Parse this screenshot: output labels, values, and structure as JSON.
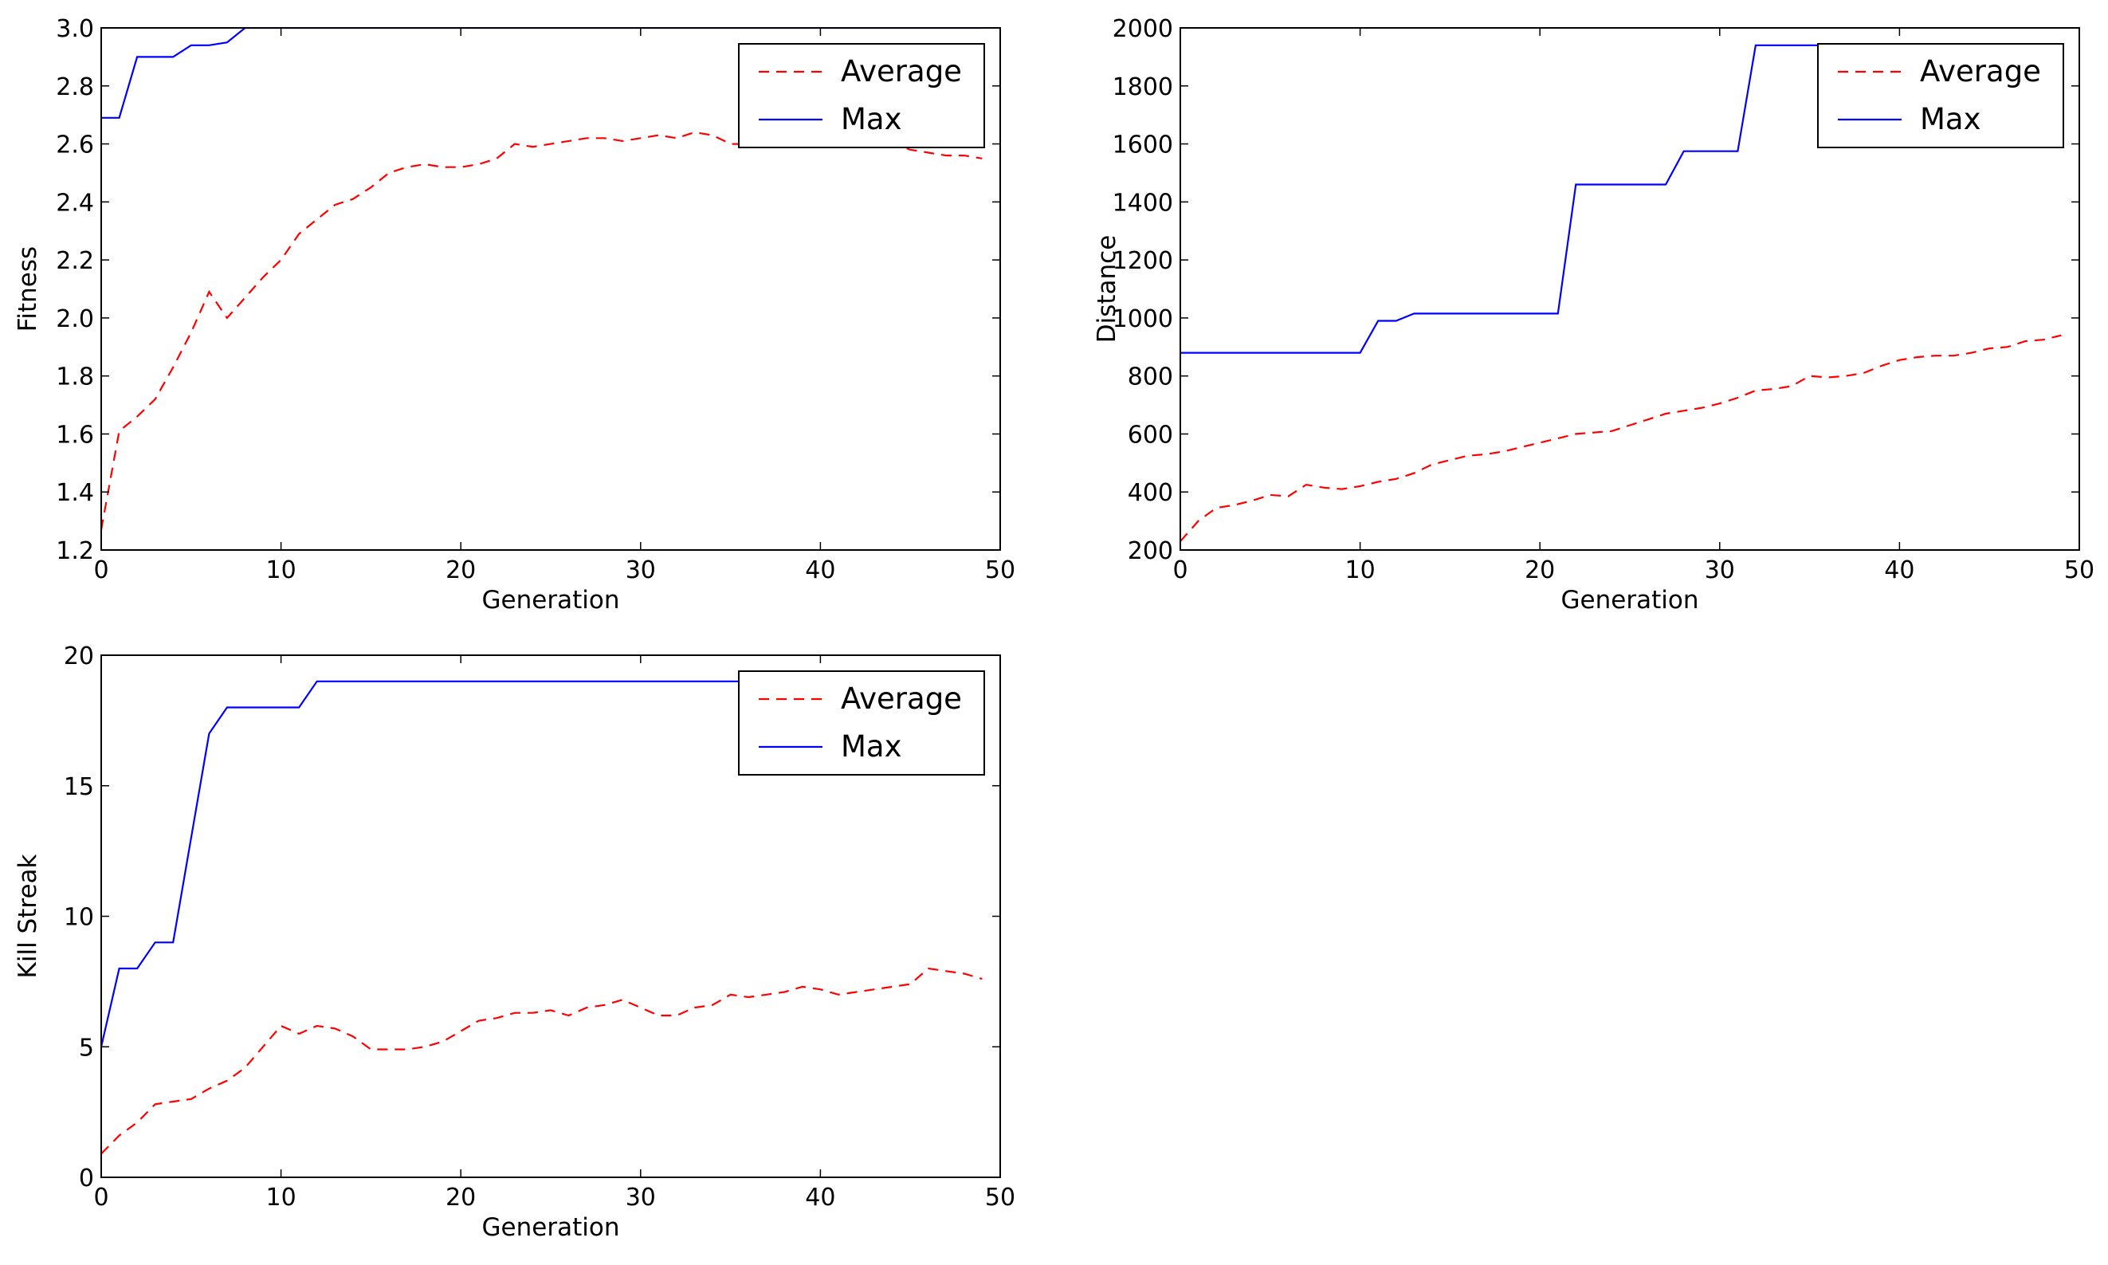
{
  "chart_data": [
    {
      "type": "line",
      "xlabel": "Generation",
      "ylabel": "Fitness",
      "xlim": [
        0,
        50
      ],
      "ylim": [
        1.2,
        3.0
      ],
      "xticks": [
        0,
        10,
        20,
        30,
        40,
        50
      ],
      "yticks": [
        1.2,
        1.4,
        1.6,
        1.8,
        2.0,
        2.2,
        2.4,
        2.6,
        2.8,
        3.0
      ],
      "ytick_decimals": 1,
      "legend_position": "upper-right",
      "x": [
        0,
        1,
        2,
        3,
        4,
        5,
        6,
        7,
        8,
        9,
        10,
        11,
        12,
        13,
        14,
        15,
        16,
        17,
        18,
        19,
        20,
        21,
        22,
        23,
        24,
        25,
        26,
        27,
        28,
        29,
        30,
        31,
        32,
        33,
        34,
        35,
        36,
        37,
        38,
        39,
        40,
        41,
        42,
        43,
        44,
        45,
        46,
        47,
        48,
        49
      ],
      "series": [
        {
          "name": "Average",
          "color": "#ff0000",
          "style": "dashed",
          "values": [
            1.27,
            1.61,
            1.66,
            1.72,
            1.83,
            1.95,
            2.09,
            2.0,
            2.07,
            2.14,
            2.2,
            2.29,
            2.34,
            2.39,
            2.41,
            2.45,
            2.5,
            2.52,
            2.53,
            2.52,
            2.52,
            2.53,
            2.55,
            2.6,
            2.59,
            2.6,
            2.61,
            2.62,
            2.62,
            2.61,
            2.62,
            2.63,
            2.62,
            2.64,
            2.63,
            2.6,
            2.6,
            2.6,
            2.6,
            2.6,
            2.6,
            2.6,
            2.6,
            2.6,
            2.6,
            2.58,
            2.57,
            2.56,
            2.56,
            2.55
          ]
        },
        {
          "name": "Max",
          "color": "#0000ff",
          "style": "solid",
          "values": [
            2.69,
            2.69,
            2.9,
            2.9,
            2.9,
            2.94,
            2.94,
            2.95,
            3.0,
            3.0,
            3.0,
            3.0,
            3.0,
            3.0,
            3.0,
            3.0,
            3.0,
            3.0,
            3.0,
            3.0,
            3.0,
            3.0,
            3.0,
            3.0,
            3.0,
            3.0,
            3.0,
            3.0,
            3.0,
            3.0,
            3.0,
            3.0,
            3.0,
            3.0,
            3.0,
            3.0,
            3.0,
            3.0,
            3.0,
            3.0,
            3.0,
            3.0,
            3.0,
            3.0,
            3.0,
            3.0,
            3.0,
            3.0,
            3.0,
            3.0
          ]
        }
      ]
    },
    {
      "type": "line",
      "xlabel": "Generation",
      "ylabel": "Distance",
      "xlim": [
        0,
        50
      ],
      "ylim": [
        200,
        2000
      ],
      "xticks": [
        0,
        10,
        20,
        30,
        40,
        50
      ],
      "yticks": [
        200,
        400,
        600,
        800,
        1000,
        1200,
        1400,
        1600,
        1800,
        2000
      ],
      "ytick_decimals": 0,
      "legend_position": "upper-right",
      "x": [
        0,
        1,
        2,
        3,
        4,
        5,
        6,
        7,
        8,
        9,
        10,
        11,
        12,
        13,
        14,
        15,
        16,
        17,
        18,
        19,
        20,
        21,
        22,
        23,
        24,
        25,
        26,
        27,
        28,
        29,
        30,
        31,
        32,
        33,
        34,
        35,
        36,
        37,
        38,
        39,
        40,
        41,
        42,
        43,
        44,
        45,
        46,
        47,
        48,
        49
      ],
      "series": [
        {
          "name": "Average",
          "color": "#ff0000",
          "style": "dashed",
          "values": [
            230,
            300,
            345,
            355,
            370,
            390,
            385,
            425,
            415,
            410,
            420,
            435,
            445,
            465,
            495,
            510,
            525,
            530,
            540,
            555,
            570,
            585,
            600,
            605,
            610,
            630,
            650,
            670,
            680,
            690,
            705,
            725,
            750,
            755,
            765,
            800,
            795,
            800,
            810,
            835,
            855,
            865,
            870,
            870,
            880,
            895,
            900,
            920,
            925,
            940
          ]
        },
        {
          "name": "Max",
          "color": "#0000ff",
          "style": "solid",
          "values": [
            880,
            880,
            880,
            880,
            880,
            880,
            880,
            880,
            880,
            880,
            880,
            990,
            990,
            1015,
            1015,
            1015,
            1015,
            1015,
            1015,
            1015,
            1015,
            1015,
            1460,
            1460,
            1460,
            1460,
            1460,
            1460,
            1575,
            1575,
            1575,
            1575,
            1940,
            1940,
            1940,
            1940,
            1940,
            1940,
            1940,
            1940,
            1940,
            1940,
            1940,
            1940,
            1940,
            1940,
            1940,
            1940,
            1940,
            1940
          ]
        }
      ]
    },
    {
      "type": "line",
      "xlabel": "Generation",
      "ylabel": "Kill Streak",
      "xlim": [
        0,
        50
      ],
      "ylim": [
        0,
        20
      ],
      "xticks": [
        0,
        10,
        20,
        30,
        40,
        50
      ],
      "yticks": [
        0,
        5,
        10,
        15,
        20
      ],
      "ytick_decimals": 0,
      "legend_position": "upper-right",
      "x": [
        0,
        1,
        2,
        3,
        4,
        5,
        6,
        7,
        8,
        9,
        10,
        11,
        12,
        13,
        14,
        15,
        16,
        17,
        18,
        19,
        20,
        21,
        22,
        23,
        24,
        25,
        26,
        27,
        28,
        29,
        30,
        31,
        32,
        33,
        34,
        35,
        36,
        37,
        38,
        39,
        40,
        41,
        42,
        43,
        44,
        45,
        46,
        47,
        48,
        49
      ],
      "series": [
        {
          "name": "Average",
          "color": "#ff0000",
          "style": "dashed",
          "values": [
            0.9,
            1.6,
            2.1,
            2.8,
            2.9,
            3.0,
            3.4,
            3.7,
            4.2,
            5.0,
            5.8,
            5.5,
            5.8,
            5.7,
            5.4,
            4.9,
            4.9,
            4.9,
            5.0,
            5.2,
            5.6,
            6.0,
            6.1,
            6.3,
            6.3,
            6.4,
            6.2,
            6.5,
            6.6,
            6.8,
            6.5,
            6.2,
            6.2,
            6.5,
            6.6,
            7.0,
            6.9,
            7.0,
            7.1,
            7.3,
            7.2,
            7.0,
            7.1,
            7.2,
            7.3,
            7.4,
            8.0,
            7.9,
            7.8,
            7.6
          ]
        },
        {
          "name": "Max",
          "color": "#0000ff",
          "style": "solid",
          "values": [
            5,
            8,
            8,
            9,
            9,
            13,
            17,
            18,
            18,
            18,
            18,
            18,
            19,
            19,
            19,
            19,
            19,
            19,
            19,
            19,
            19,
            19,
            19,
            19,
            19,
            19,
            19,
            19,
            19,
            19,
            19,
            19,
            19,
            19,
            19,
            19,
            19,
            19,
            19,
            19,
            19,
            19,
            19,
            19,
            19,
            19,
            19,
            19,
            19,
            19
          ]
        }
      ]
    }
  ]
}
